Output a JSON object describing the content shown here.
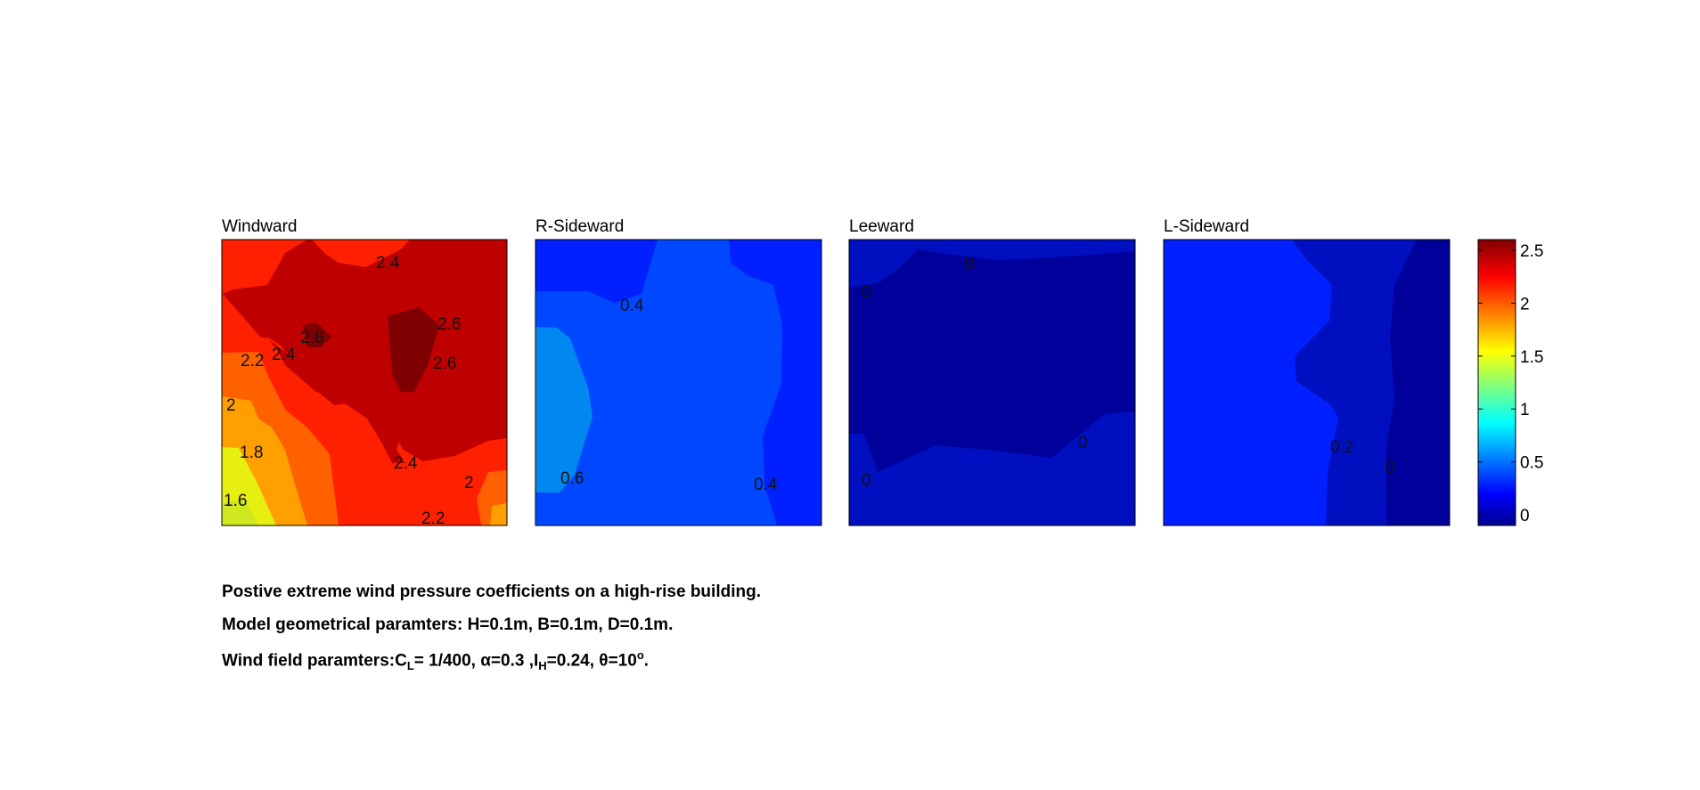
{
  "chart_data": {
    "type": "contour",
    "panels": [
      {
        "title": "Windward",
        "contour_labels": [
          "2.4",
          "2.6",
          "2.6",
          "2.6",
          "2.2",
          "2.4",
          "2",
          "1.8",
          "1.6",
          "2.4",
          "2",
          "2.2"
        ]
      },
      {
        "title": "R-Sideward",
        "contour_labels": [
          "0.4",
          "0.6",
          "0.4"
        ]
      },
      {
        "title": "Leeward",
        "contour_labels": [
          "0",
          "0",
          "0",
          "0"
        ]
      },
      {
        "title": "L-Sideward",
        "contour_labels": [
          "0.2",
          "0"
        ]
      }
    ],
    "colorbar": {
      "colormap": "jet",
      "ticks": [
        "2.5",
        "2",
        "1.5",
        "1",
        "0.5",
        "0"
      ],
      "range": [
        -0.1,
        2.6
      ]
    },
    "colors": {
      "level_2_6": "#7e0000",
      "level_2_4": "#bf0000",
      "level_2_2": "#ff2000",
      "level_2_0": "#ff6000",
      "level_1_8": "#ffa000",
      "level_1_6": "#e6ef10",
      "level_0_6": "#0088f0",
      "level_0_4": "#0048ff",
      "level_0_2": "#0020ff",
      "level_0_0": "#0010c0",
      "level_neg": "#00009a"
    }
  },
  "caption": {
    "line1": "Postive extreme  wind pressure coefficients on a high-rise building.",
    "line2": "Model geometrical paramters: H=0.1m, B=0.1m, D=0.1m.",
    "line3_prefix": "Wind field paramters:C",
    "line3_sub_L": "L",
    "line3_mid1": "= 1/400, ",
    "line3_alpha": "α=0.3 ,I",
    "line3_sub_H": "H",
    "line3_mid2": "=0.24, θ=10",
    "line3_sup": "o",
    "line3_end": "."
  }
}
